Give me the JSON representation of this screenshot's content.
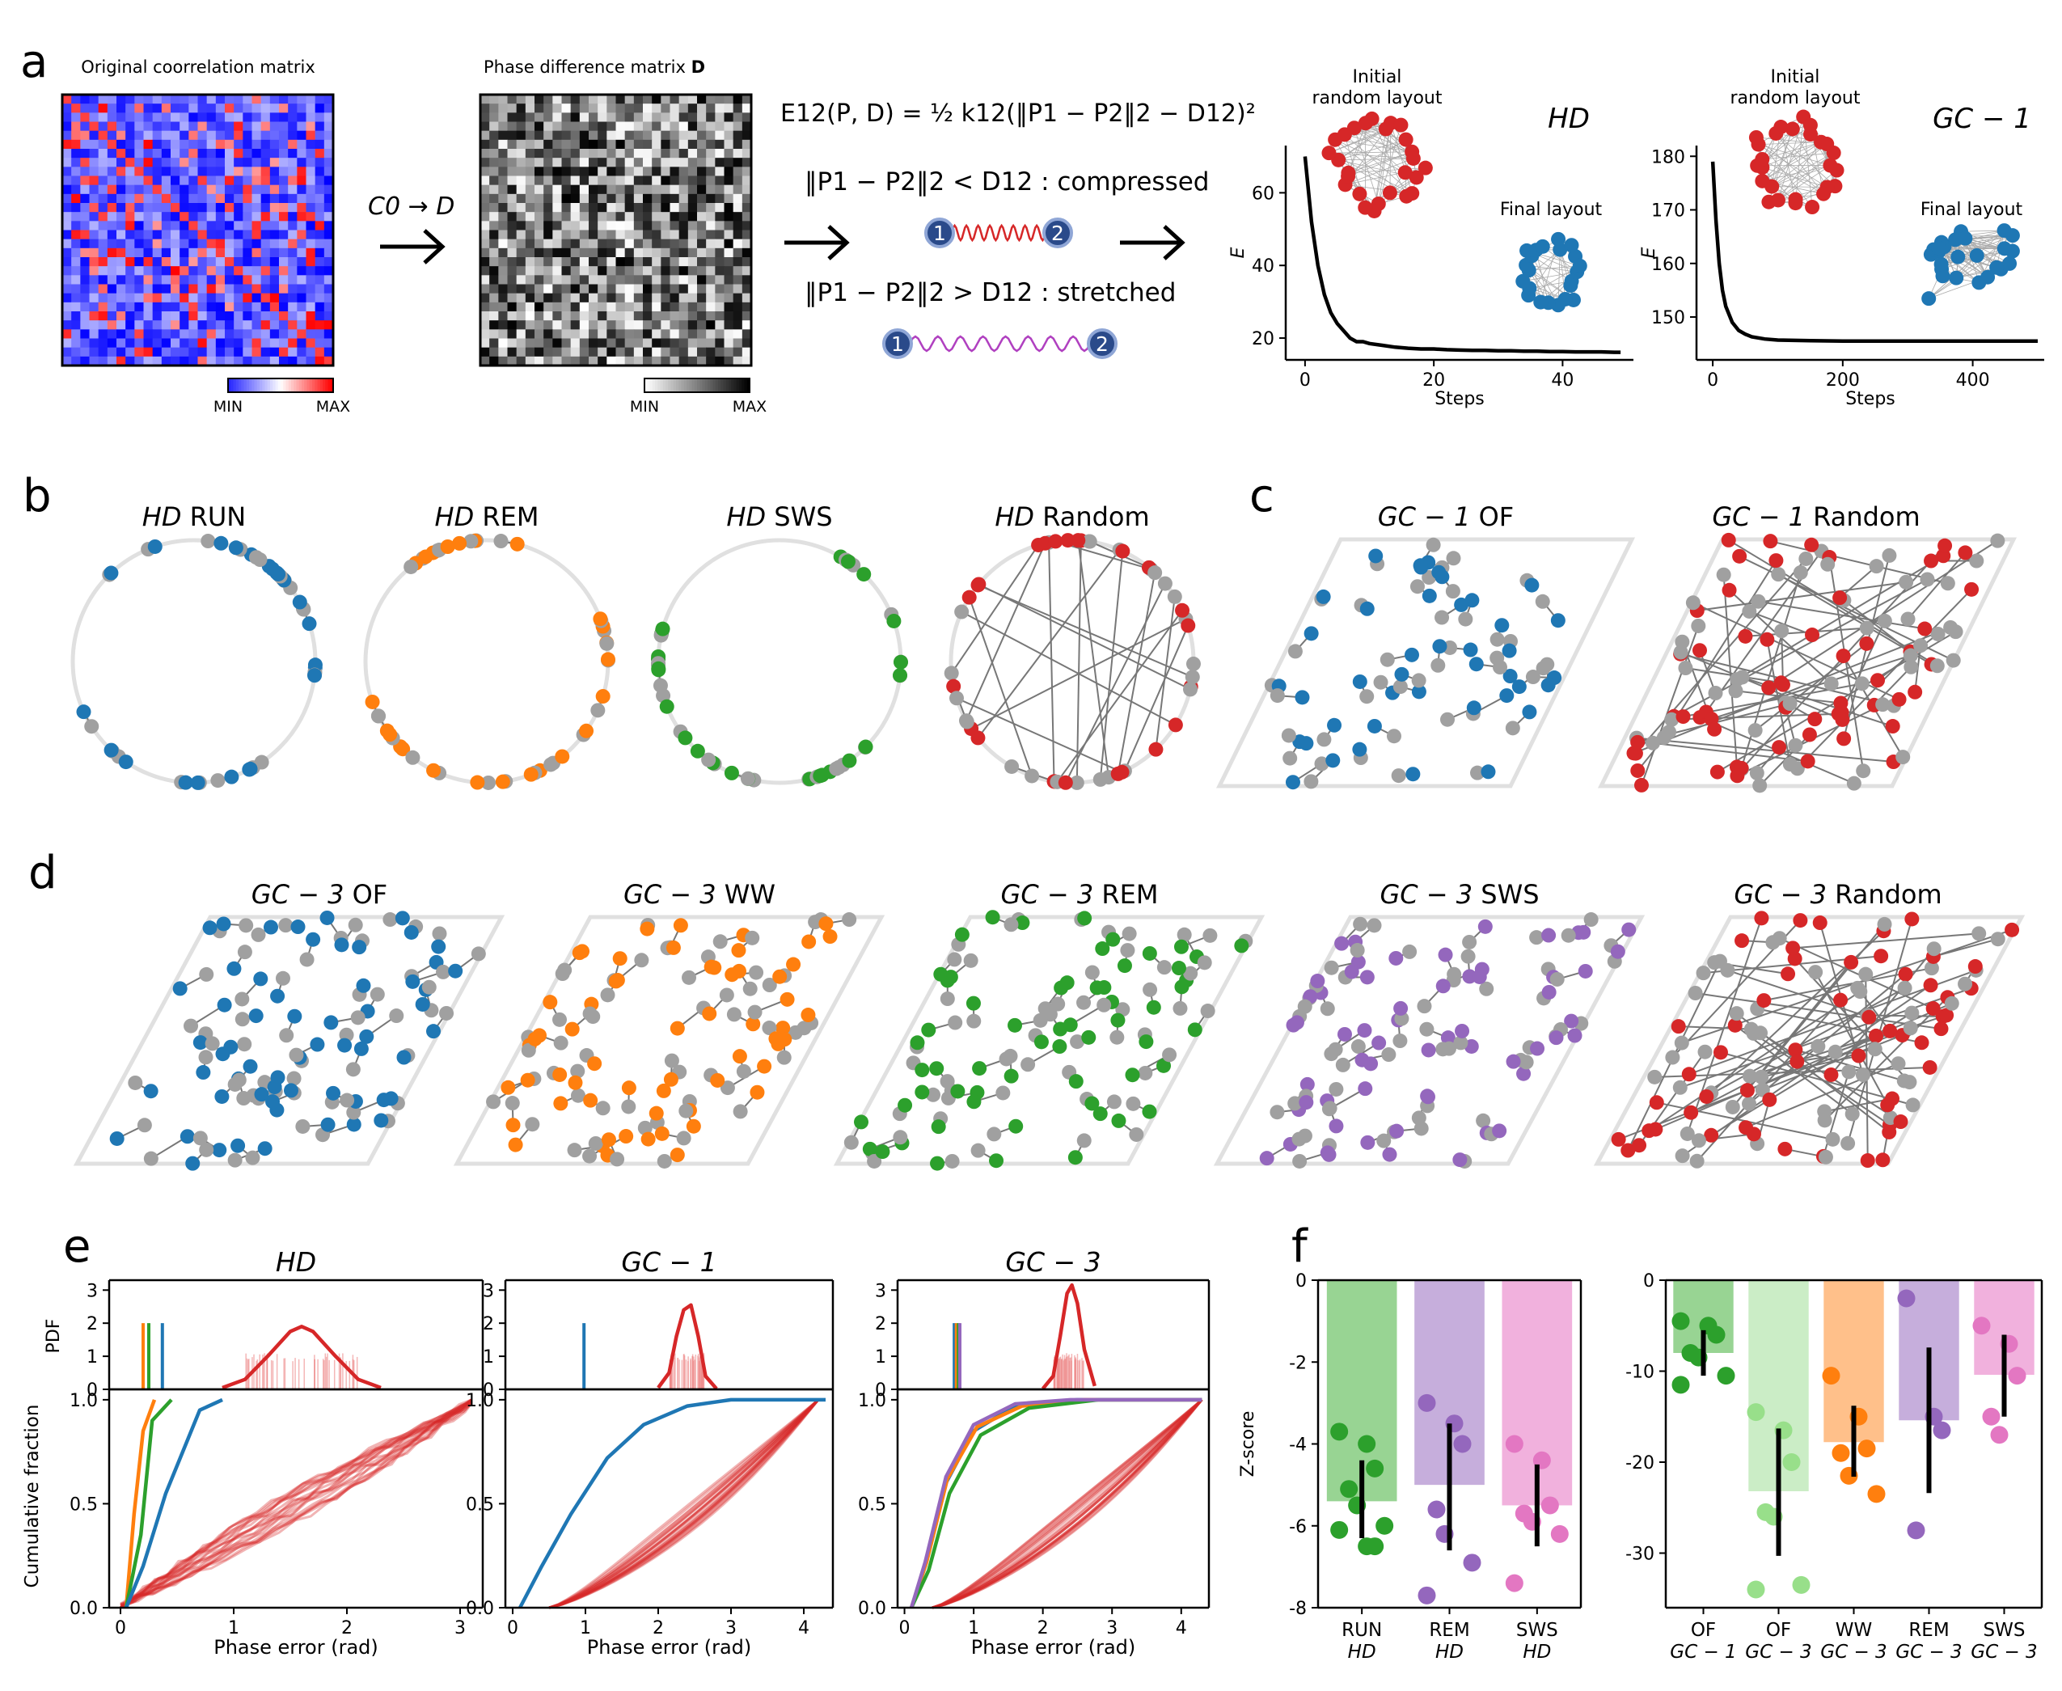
{
  "panels": {
    "a": "a",
    "b": "b",
    "c": "c",
    "d": "d",
    "e": "e",
    "f": "f"
  },
  "panel_a": {
    "corr_title": "Original coorrelation matrix",
    "phase_title_prefix": "Phase difference matrix ",
    "phase_title_bold": "D",
    "cbar_min": "MIN",
    "cbar_max": "MAX",
    "transform_label": "C0 → D",
    "energy_eq": "E12(P, D) = ½ k12(‖P1 − P2‖2 − D12)²",
    "compressed_text": "‖P1 − P2‖2 < D12 : compressed",
    "stretched_text": "‖P1 − P2‖2 > D12 : stretched",
    "node1": "1",
    "node2": "2",
    "colors": {
      "cbar_low": "#1f1fff",
      "cbar_high": "#ff1f1f",
      "spring_compressed": "#d62728",
      "spring_stretched": "#b040c0",
      "node": "#2a4a8a"
    }
  },
  "chart_data": [
    {
      "id": "energy-hd",
      "type": "line",
      "title": "HD",
      "xlabel": "Steps",
      "ylabel": "E",
      "xticks": [
        0,
        20,
        40
      ],
      "yticks": [
        20,
        40,
        60
      ],
      "xlim": [
        -3,
        51
      ],
      "ylim": [
        14,
        73
      ],
      "x": [
        0,
        1,
        2,
        3,
        4,
        5,
        6,
        7,
        8,
        9,
        10,
        12,
        14,
        16,
        18,
        20,
        22,
        24,
        26,
        28,
        30,
        32,
        34,
        36,
        38,
        40,
        42,
        44,
        46,
        48,
        49
      ],
      "y": [
        70,
        52,
        40,
        32,
        27,
        24,
        22,
        20,
        19,
        19,
        18.5,
        18,
        17.5,
        17.2,
        17,
        17,
        16.8,
        16.7,
        16.6,
        16.6,
        16.5,
        16.5,
        16.4,
        16.4,
        16.3,
        16.3,
        16.2,
        16.2,
        16.2,
        16.1,
        16.1
      ],
      "annotations": [
        "Initial random layout",
        "Final layout"
      ],
      "layout_colors": {
        "initial": "#d62728",
        "final": "#1f77b4"
      }
    },
    {
      "id": "energy-gc1",
      "type": "line",
      "title": "GC − 1",
      "xlabel": "Steps",
      "ylabel": "E",
      "xticks": [
        0,
        200,
        400
      ],
      "yticks": [
        150,
        160,
        170,
        180
      ],
      "xlim": [
        -25,
        510
      ],
      "ylim": [
        142,
        182
      ],
      "x": [
        0,
        5,
        10,
        15,
        20,
        30,
        40,
        50,
        60,
        80,
        100,
        150,
        200,
        300,
        400,
        500
      ],
      "y": [
        179,
        168,
        160,
        155,
        152,
        149,
        147.5,
        146.8,
        146.3,
        145.9,
        145.7,
        145.6,
        145.5,
        145.5,
        145.5,
        145.5
      ],
      "annotations": [
        "Initial random layout",
        "Final layout"
      ],
      "layout_colors": {
        "initial": "#d62728",
        "final": "#1f77b4"
      }
    },
    {
      "id": "pdf-hd",
      "type": "line",
      "title": "HD",
      "ylabel": "PDF",
      "yticks": [
        0,
        1,
        2,
        3
      ],
      "ylim": [
        0,
        3.3
      ],
      "xlim": [
        -0.1,
        3.2
      ],
      "series": [
        {
          "color": "#d62728",
          "values": [
            {
              "x": 0.9,
              "y": 0.05
            },
            {
              "x": 1.1,
              "y": 0.3
            },
            {
              "x": 1.3,
              "y": 1.0
            },
            {
              "x": 1.5,
              "y": 1.75
            },
            {
              "x": 1.6,
              "y": 1.9
            },
            {
              "x": 1.7,
              "y": 1.75
            },
            {
              "x": 1.9,
              "y": 1.0
            },
            {
              "x": 2.1,
              "y": 0.3
            },
            {
              "x": 2.3,
              "y": 0.05
            }
          ]
        }
      ],
      "observed": [
        {
          "x": 0.2,
          "color": "#ff7f0e"
        },
        {
          "x": 0.25,
          "color": "#2ca02c"
        },
        {
          "x": 0.37,
          "color": "#1f77b4"
        }
      ]
    },
    {
      "id": "pdf-gc1",
      "type": "line",
      "title": "GC − 1",
      "yticks": [
        0,
        1,
        2,
        3
      ],
      "ylim": [
        0,
        3.3
      ],
      "xlim": [
        -0.1,
        4.4
      ],
      "series": [
        {
          "color": "#d62728",
          "values": [
            {
              "x": 2.0,
              "y": 0.05
            },
            {
              "x": 2.15,
              "y": 0.5
            },
            {
              "x": 2.25,
              "y": 1.6
            },
            {
              "x": 2.35,
              "y": 2.4
            },
            {
              "x": 2.45,
              "y": 2.55
            },
            {
              "x": 2.55,
              "y": 1.6
            },
            {
              "x": 2.65,
              "y": 0.4
            },
            {
              "x": 2.8,
              "y": 0.02
            }
          ]
        }
      ],
      "observed": [
        {
          "x": 0.98,
          "color": "#1f77b4"
        }
      ]
    },
    {
      "id": "pdf-gc3",
      "type": "line",
      "title": "GC − 3",
      "yticks": [
        0,
        1,
        2,
        3
      ],
      "ylim": [
        0,
        3.3
      ],
      "xlim": [
        -0.1,
        4.4
      ],
      "series": [
        {
          "color": "#d62728",
          "values": [
            {
              "x": 2.0,
              "y": 0.02
            },
            {
              "x": 2.15,
              "y": 0.4
            },
            {
              "x": 2.25,
              "y": 1.6
            },
            {
              "x": 2.35,
              "y": 2.9
            },
            {
              "x": 2.42,
              "y": 3.15
            },
            {
              "x": 2.5,
              "y": 2.6
            },
            {
              "x": 2.6,
              "y": 1.2
            },
            {
              "x": 2.75,
              "y": 0.1
            }
          ]
        }
      ],
      "observed": [
        {
          "x": 0.72,
          "color": "#1f77b4"
        },
        {
          "x": 0.75,
          "color": "#ff7f0e"
        },
        {
          "x": 0.78,
          "color": "#2ca02c"
        },
        {
          "x": 0.8,
          "color": "#9467bd"
        }
      ]
    },
    {
      "id": "cdf-hd",
      "type": "line",
      "ylabel": "Cumulative fraction",
      "xlabel": "Phase error (rad)",
      "xticks": [
        0,
        1,
        2,
        3
      ],
      "yticks": [
        0.0,
        0.5,
        1.0
      ],
      "xlim": [
        -0.1,
        3.2
      ],
      "ylim": [
        0,
        1.05
      ],
      "series": [
        {
          "name": "",
          "color": "#ff7f0e",
          "values": [
            {
              "x": 0.05,
              "y": 0
            },
            {
              "x": 0.12,
              "y": 0.45
            },
            {
              "x": 0.2,
              "y": 0.85
            },
            {
              "x": 0.3,
              "y": 1.0
            }
          ]
        },
        {
          "name": "",
          "color": "#2ca02c",
          "values": [
            {
              "x": 0.05,
              "y": 0
            },
            {
              "x": 0.18,
              "y": 0.35
            },
            {
              "x": 0.28,
              "y": 0.9
            },
            {
              "x": 0.45,
              "y": 1.0
            }
          ]
        },
        {
          "name": "",
          "color": "#1f77b4",
          "values": [
            {
              "x": 0.05,
              "y": 0
            },
            {
              "x": 0.2,
              "y": 0.2
            },
            {
              "x": 0.4,
              "y": 0.55
            },
            {
              "x": 0.7,
              "y": 0.95
            },
            {
              "x": 0.9,
              "y": 1.0
            }
          ]
        }
      ],
      "shuffle": {
        "color": "#d62728",
        "x0": 0.0,
        "x1": 3.15
      }
    },
    {
      "id": "cdf-gc1",
      "type": "line",
      "xlabel": "Phase error (rad)",
      "xticks": [
        0,
        1,
        2,
        3,
        4
      ],
      "yticks": [
        0.0,
        0.5,
        1.0
      ],
      "xlim": [
        -0.1,
        4.4
      ],
      "ylim": [
        0,
        1.05
      ],
      "series": [
        {
          "name": "",
          "color": "#1f77b4",
          "values": [
            {
              "x": 0.1,
              "y": 0
            },
            {
              "x": 0.4,
              "y": 0.2
            },
            {
              "x": 0.8,
              "y": 0.45
            },
            {
              "x": 1.3,
              "y": 0.72
            },
            {
              "x": 1.8,
              "y": 0.88
            },
            {
              "x": 2.4,
              "y": 0.97
            },
            {
              "x": 3.0,
              "y": 1.0
            },
            {
              "x": 4.3,
              "y": 1.0
            }
          ]
        }
      ],
      "shuffle": {
        "color": "#d62728",
        "x0": 0.5,
        "x1": 4.2
      }
    },
    {
      "id": "cdf-gc3",
      "type": "line",
      "xlabel": "Phase error (rad)",
      "xticks": [
        0,
        1,
        2,
        3,
        4
      ],
      "yticks": [
        0.0,
        0.5,
        1.0
      ],
      "xlim": [
        -0.1,
        4.4
      ],
      "ylim": [
        0,
        1.05
      ],
      "series": [
        {
          "name": "",
          "color": "#1f77b4",
          "values": [
            {
              "x": 0.1,
              "y": 0
            },
            {
              "x": 0.3,
              "y": 0.2
            },
            {
              "x": 0.6,
              "y": 0.6
            },
            {
              "x": 1.0,
              "y": 0.85
            },
            {
              "x": 1.6,
              "y": 0.97
            },
            {
              "x": 2.5,
              "y": 1.0
            },
            {
              "x": 4.3,
              "y": 1.0
            }
          ]
        },
        {
          "name": "",
          "color": "#ff7f0e",
          "values": [
            {
              "x": 0.1,
              "y": 0
            },
            {
              "x": 0.32,
              "y": 0.22
            },
            {
              "x": 0.62,
              "y": 0.62
            },
            {
              "x": 1.05,
              "y": 0.87
            },
            {
              "x": 1.7,
              "y": 0.97
            },
            {
              "x": 2.6,
              "y": 1.0
            },
            {
              "x": 4.3,
              "y": 1.0
            }
          ]
        },
        {
          "name": "",
          "color": "#2ca02c",
          "values": [
            {
              "x": 0.1,
              "y": 0
            },
            {
              "x": 0.35,
              "y": 0.18
            },
            {
              "x": 0.65,
              "y": 0.55
            },
            {
              "x": 1.1,
              "y": 0.83
            },
            {
              "x": 1.8,
              "y": 0.96
            },
            {
              "x": 2.8,
              "y": 1.0
            },
            {
              "x": 4.3,
              "y": 1.0
            }
          ]
        },
        {
          "name": "",
          "color": "#9467bd",
          "values": [
            {
              "x": 0.1,
              "y": 0
            },
            {
              "x": 0.3,
              "y": 0.22
            },
            {
              "x": 0.6,
              "y": 0.63
            },
            {
              "x": 1.0,
              "y": 0.88
            },
            {
              "x": 1.6,
              "y": 0.98
            },
            {
              "x": 2.4,
              "y": 1.0
            },
            {
              "x": 4.3,
              "y": 1.0
            }
          ]
        }
      ],
      "shuffle": {
        "color": "#d62728",
        "x0": 0.4,
        "x1": 4.3
      }
    },
    {
      "id": "zscore-hd",
      "type": "bar",
      "ylabel": "Z-score",
      "categories": [
        "RUN",
        "REM",
        "SWS"
      ],
      "sublabels": [
        "HD",
        "HD",
        "HD"
      ],
      "yticks": [
        0,
        -2,
        -4,
        -6,
        -8
      ],
      "ylim": [
        -8,
        0
      ],
      "values": [
        -5.4,
        -5.0,
        -5.5
      ],
      "err": [
        [
          -6.3,
          -4.4
        ],
        [
          -6.6,
          -3.5
        ],
        [
          -6.5,
          -4.5
        ]
      ],
      "colors": [
        "#98d493",
        "#c6aedc",
        "#f1b1dd"
      ],
      "point_colors": [
        "#2ca02c",
        "#9467bd",
        "#e377c2"
      ],
      "points": [
        [
          -3.7,
          -4.0,
          -4.6,
          -5.1,
          -5.5,
          -6.0,
          -6.1,
          -6.5,
          -6.5
        ],
        [
          -3.0,
          -3.5,
          -4.0,
          -5.6,
          -6.2,
          -6.9,
          -7.7
        ],
        [
          -4.0,
          -4.4,
          -5.5,
          -5.7,
          -5.9,
          -6.2,
          -7.4
        ]
      ]
    },
    {
      "id": "zscore-gc",
      "type": "bar",
      "categories": [
        "OF",
        "OF",
        "WW",
        "REM",
        "SWS"
      ],
      "sublabels": [
        "GC − 1",
        "GC − 3",
        "GC − 3",
        "GC − 3",
        "GC − 3"
      ],
      "yticks": [
        0,
        -10,
        -20,
        -30
      ],
      "ylim": [
        -36,
        0
      ],
      "values": [
        -8.0,
        -23.2,
        -17.8,
        -15.4,
        -10.4
      ],
      "err": [
        [
          -10.5,
          -5.5
        ],
        [
          -30.3,
          -16.3
        ],
        [
          -21.6,
          -13.8
        ],
        [
          -23.4,
          -7.4
        ],
        [
          -15,
          -6
        ]
      ],
      "colors": [
        "#98d493",
        "#cbedc6",
        "#ffc08a",
        "#c6aedc",
        "#f1b1dd"
      ],
      "point_colors": [
        "#2ca02c",
        "#98df8a",
        "#ff7f0e",
        "#9467bd",
        "#e377c2"
      ],
      "points": [
        [
          -4.5,
          -5,
          -6,
          -8,
          -8.5,
          -10.5,
          -11.5
        ],
        [
          -14.5,
          -16.5,
          -20,
          -25.5,
          -26,
          -33.5,
          -34
        ],
        [
          -10.5,
          -15,
          -18.5,
          -19,
          -21.5,
          -23.5
        ],
        [
          -2,
          -15,
          -16.5,
          -27.5
        ],
        [
          -5,
          -7,
          -10.5,
          -15,
          -17
        ]
      ]
    }
  ],
  "layout_titles": {
    "b": [
      {
        "it": "HD",
        "rest": " RUN"
      },
      {
        "it": "HD",
        "rest": " REM"
      },
      {
        "it": "HD",
        "rest": " SWS"
      },
      {
        "it": "HD",
        "rest": " Random"
      }
    ],
    "c": [
      {
        "it": "GC − 1",
        "rest": " OF"
      },
      {
        "it": "GC − 1",
        "rest": " Random"
      }
    ],
    "d": [
      {
        "it": "GC − 3",
        "rest": " OF"
      },
      {
        "it": "GC − 3",
        "rest": " WW"
      },
      {
        "it": "GC − 3",
        "rest": " REM"
      },
      {
        "it": "GC − 3",
        "rest": " SWS"
      },
      {
        "it": "GC − 3",
        "rest": " Random"
      }
    ],
    "colors": {
      "run": "#1f77b4",
      "rem": "#ff7f0e",
      "sws": "#2ca02c",
      "random": "#d62728",
      "purple": "#9467bd",
      "gray": "#a0a0a0"
    }
  }
}
